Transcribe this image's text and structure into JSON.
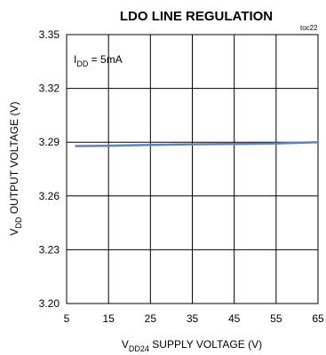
{
  "chart_data": {
    "type": "line",
    "title": "LDO LINE REGULATION",
    "figure_code": "toc22",
    "xlabel": {
      "prefix": "V",
      "subscript": "DD24",
      "suffix": " SUPPLY VOLTAGE (V)"
    },
    "ylabel": {
      "prefix": "V",
      "subscript": "DD",
      "suffix": " OUTPUT VOLTAGE (V)"
    },
    "annotation": {
      "prefix": "I",
      "subscript": "DD",
      "suffix": " = 5mA"
    },
    "xlim": [
      5,
      65
    ],
    "ylim": [
      3.2,
      3.35
    ],
    "x_ticks": [
      "5",
      "15",
      "25",
      "35",
      "45",
      "55",
      "65"
    ],
    "y_ticks": [
      "3.20",
      "3.23",
      "3.26",
      "3.29",
      "3.32",
      "3.35"
    ],
    "grid": true,
    "line_color": "#5b83c4",
    "series": [
      {
        "x": [
          7,
          15,
          25,
          35,
          45,
          55,
          65
        ],
        "y": [
          3.2878,
          3.288,
          3.2885,
          3.2888,
          3.289,
          3.2893,
          3.29
        ]
      }
    ]
  }
}
